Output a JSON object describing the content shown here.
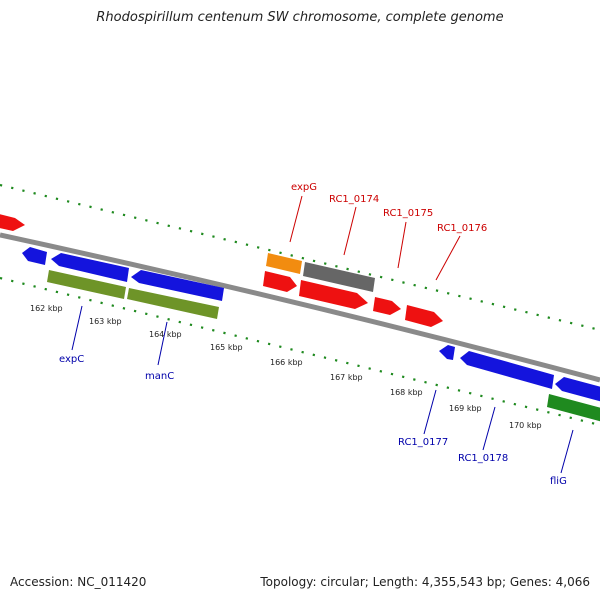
{
  "title": "Rhodospirillum centenum SW chromosome, complete genome",
  "footer": {
    "accession": "Accession: NC_011420",
    "summary": "Topology: circular; Length: 4,355,543 bp; Genes: 4,066"
  },
  "colors": {
    "backbone": "#8a8a8a",
    "tick": "#1f8a1f",
    "gene_red": "#ee1111",
    "gene_blue": "#1414dd",
    "gene_olive": "#6e9428",
    "gene_orange": "#f28c10",
    "gene_gray": "#666666",
    "gene_green": "#1f8a1f",
    "label_red": "#cc0000",
    "label_blue": "#0000aa"
  },
  "scale_labels": [
    "162 kbp",
    "163 kbp",
    "164 kbp",
    "165 kbp",
    "166 kbp",
    "167 kbp",
    "168 kbp",
    "169 kbp",
    "170 kbp"
  ],
  "gene_labels": {
    "expG": "expG",
    "RC1_0174": "RC1_0174",
    "RC1_0175": "RC1_0175",
    "RC1_0176": "RC1_0176",
    "expC": "expC",
    "manC": "manC",
    "RC1_0177": "RC1_0177",
    "RC1_0178": "RC1_0178",
    "fliG": "fliG"
  }
}
